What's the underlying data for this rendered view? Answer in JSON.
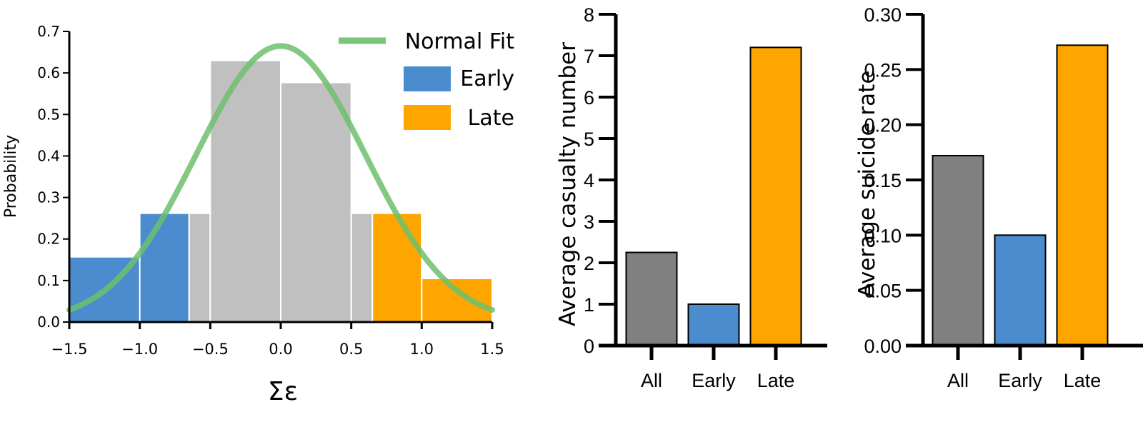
{
  "chart_data": [
    {
      "type": "bar",
      "subtype": "histogram",
      "xlabel": "Σε",
      "ylabel": "Probability",
      "xlim": [
        -1.5,
        1.5
      ],
      "ylim": [
        0,
        0.7
      ],
      "x_ticks": [
        "−1.5",
        "−1.0",
        "−0.5",
        "0.0",
        "0.5",
        "1.0",
        "1.5"
      ],
      "y_ticks": [
        "0.0",
        "0.1",
        "0.2",
        "0.3",
        "0.4",
        "0.5",
        "0.6",
        "0.7"
      ],
      "bins": [
        {
          "x0": -1.5,
          "x1": -1.0,
          "value": 0.157,
          "group": "Early"
        },
        {
          "x0": -1.0,
          "x1": -0.65,
          "value": 0.262,
          "group": "Early"
        },
        {
          "x0": -0.65,
          "x1": -0.5,
          "value": 0.262,
          "group": "Other"
        },
        {
          "x0": -0.5,
          "x1": 0.0,
          "value": 0.63,
          "group": "Other"
        },
        {
          "x0": 0.0,
          "x1": 0.5,
          "value": 0.577,
          "group": "Other"
        },
        {
          "x0": 0.5,
          "x1": 0.65,
          "value": 0.262,
          "group": "Other"
        },
        {
          "x0": 0.65,
          "x1": 1.0,
          "value": 0.262,
          "group": "Late"
        },
        {
          "x0": 1.0,
          "x1": 1.5,
          "value": 0.105,
          "group": "Late"
        }
      ],
      "normal_fit": {
        "mean": 0.0,
        "sigma": 0.6,
        "x_range": [
          -1.5,
          1.5
        ]
      },
      "legend": {
        "placement": "top-right",
        "entries": [
          {
            "label": "Normal Fit",
            "kind": "line",
            "color": "#6dbf6d"
          },
          {
            "label": "Early",
            "kind": "patch",
            "color": "#4a8ccd"
          },
          {
            "label": "Late",
            "kind": "patch",
            "color": "#ffa500"
          }
        ]
      },
      "colors": {
        "Early": "#4a8ccd",
        "Late": "#ffa500",
        "Other": "#c0c0c0",
        "fit": "#6dbf6d"
      }
    },
    {
      "type": "bar",
      "ylabel": "Average casualty number",
      "ylim": [
        0,
        8
      ],
      "y_ticks": [
        "0",
        "1",
        "2",
        "3",
        "4",
        "5",
        "6",
        "7",
        "8"
      ],
      "categories": [
        "All",
        "Early",
        "Late"
      ],
      "values": [
        2.25,
        1.0,
        7.2
      ],
      "colors": [
        "#808080",
        "#4a8ccd",
        "#ffa500"
      ]
    },
    {
      "type": "bar",
      "ylabel": "Average suicide rate",
      "ylim": [
        0,
        0.3
      ],
      "y_ticks": [
        "0.00",
        "0.05",
        "0.10",
        "0.15",
        "0.20",
        "0.25",
        "0.30"
      ],
      "categories": [
        "All",
        "Early",
        "Late"
      ],
      "values": [
        0.172,
        0.1,
        0.272
      ],
      "colors": [
        "#808080",
        "#4a8ccd",
        "#ffa500"
      ]
    }
  ]
}
